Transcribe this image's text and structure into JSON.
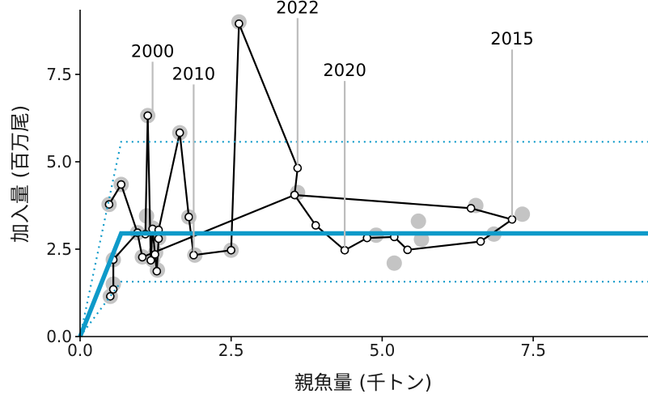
{
  "chart_data": {
    "type": "scatter",
    "title": "",
    "xlabel": "親魚量 (千トン)",
    "ylabel": "加入量 (百万尾)",
    "xlim": [
      0,
      9.4
    ],
    "ylim": [
      0,
      9.35
    ],
    "xticks": [
      0.0,
      2.5,
      5.0,
      7.5
    ],
    "yticks": [
      0.0,
      2.5,
      5.0,
      7.5
    ],
    "xtick_labels": [
      "0.0",
      "2.5",
      "5.0",
      "7.5"
    ],
    "ytick_labels": [
      "0.0",
      "2.5",
      "5.0",
      "7.5"
    ],
    "grid": false,
    "series": [
      {
        "role": "observed",
        "marker": "grey filled circle",
        "points": [
          [
            0.5,
            1.15
          ],
          [
            0.55,
            1.5
          ],
          [
            0.55,
            2.2
          ],
          [
            0.48,
            3.78
          ],
          [
            0.68,
            4.35
          ],
          [
            0.95,
            2.97
          ],
          [
            1.03,
            2.28
          ],
          [
            1.1,
            3.45
          ],
          [
            1.12,
            6.32
          ],
          [
            1.2,
            2.2
          ],
          [
            1.2,
            3.1
          ],
          [
            1.25,
            2.4
          ],
          [
            1.28,
            1.9
          ],
          [
            1.3,
            2.82
          ],
          [
            1.65,
            5.83
          ],
          [
            1.8,
            3.42
          ],
          [
            1.9,
            2.33
          ],
          [
            2.5,
            2.47
          ],
          [
            2.63,
            9.0
          ],
          [
            3.6,
            4.12
          ],
          [
            4.9,
            2.9
          ],
          [
            5.2,
            2.1
          ],
          [
            5.6,
            3.3
          ],
          [
            5.65,
            2.78
          ],
          [
            6.55,
            3.75
          ],
          [
            6.85,
            2.93
          ],
          [
            7.32,
            3.5
          ]
        ]
      },
      {
        "role": "model",
        "marker": "white circle with black outline, connected by black line",
        "points": [
          [
            0.48,
            3.78
          ],
          [
            0.68,
            4.35
          ],
          [
            0.95,
            2.97
          ],
          [
            1.08,
            2.93
          ],
          [
            1.12,
            6.32
          ],
          [
            1.17,
            2.18
          ],
          [
            1.2,
            3.08
          ],
          [
            1.24,
            2.35
          ],
          [
            1.27,
            1.87
          ],
          [
            1.3,
            2.8
          ],
          [
            1.3,
            3.05
          ],
          [
            1.65,
            5.83
          ],
          [
            1.8,
            3.42
          ],
          [
            1.88,
            2.33
          ],
          [
            2.5,
            2.47
          ],
          [
            2.63,
            8.95
          ],
          [
            3.6,
            4.82
          ],
          [
            3.55,
            4.05
          ],
          [
            3.9,
            3.18
          ],
          [
            4.38,
            2.47
          ],
          [
            4.75,
            2.82
          ],
          [
            5.2,
            2.85
          ],
          [
            5.42,
            2.48
          ],
          [
            6.63,
            2.72
          ],
          [
            7.15,
            3.35
          ],
          [
            6.47,
            3.67
          ],
          [
            3.55,
            4.05
          ],
          [
            1.03,
            2.27
          ],
          [
            0.95,
            2.97
          ],
          [
            0.55,
            2.2
          ],
          [
            0.55,
            1.35
          ],
          [
            0.5,
            1.15
          ]
        ]
      }
    ],
    "stock_recruitment": {
      "color": "#0e9ac9",
      "breakpoint_x": 0.68,
      "plateau_y": 2.95,
      "upper_plateau_y": 5.57,
      "lower_plateau_y": 1.57
    },
    "annotations": [
      {
        "text": "2000",
        "x": 1.2,
        "y": 6.32,
        "label_y": 8.0
      },
      {
        "text": "2010",
        "x": 1.88,
        "y": 2.33,
        "label_y": 7.35
      },
      {
        "text": "2022",
        "x": 3.6,
        "y": 4.82,
        "label_y": 9.25
      },
      {
        "text": "2020",
        "x": 4.38,
        "y": 2.47,
        "label_y": 7.45
      },
      {
        "text": "2015",
        "x": 7.15,
        "y": 3.35,
        "label_y": 8.35
      }
    ]
  }
}
